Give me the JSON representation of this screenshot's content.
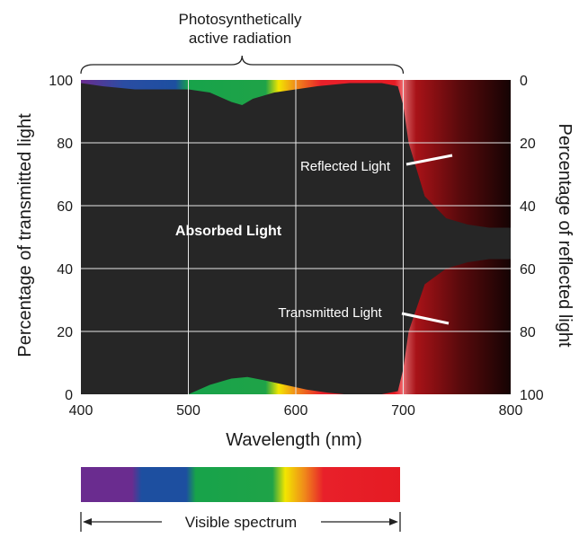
{
  "chart_data": {
    "type": "area",
    "top_label": {
      "line1": "Photosynthetically",
      "line2": "active radiation"
    },
    "xlabel": "Wavelength (nm)",
    "ylabel": "Percentage of transmitted light",
    "ylabel_right": "Percentage of reflected light",
    "xlim": [
      400,
      800
    ],
    "ylim": [
      0,
      100
    ],
    "ylim_right": [
      100,
      0
    ],
    "x_ticks": [
      "400",
      "500",
      "600",
      "700",
      "800"
    ],
    "y_ticks": [
      "0",
      "20",
      "40",
      "60",
      "80",
      "100"
    ],
    "y_ticks_right": [
      "100",
      "80",
      "60",
      "40",
      "20",
      "0"
    ],
    "grid": true,
    "par_range": [
      400,
      700
    ],
    "annotations": {
      "absorbed": "Absorbed Light",
      "reflected": "Reflected Light",
      "transmitted": "Transmitted Light"
    },
    "reflected_curve": {
      "x": [
        400,
        420,
        450,
        480,
        500,
        520,
        540,
        550,
        560,
        580,
        600,
        620,
        650,
        680,
        695,
        700,
        705,
        720,
        740,
        760,
        780,
        800
      ],
      "y": [
        1,
        2,
        3,
        3,
        3,
        4,
        7,
        8,
        6,
        4,
        3,
        2,
        1,
        1,
        2,
        8,
        20,
        37,
        44,
        46,
        47,
        47
      ]
    },
    "transmitted_curve": {
      "x": [
        400,
        450,
        500,
        520,
        540,
        555,
        570,
        590,
        610,
        630,
        645,
        680,
        695,
        700,
        705,
        720,
        740,
        760,
        780,
        800
      ],
      "y": [
        0,
        0,
        0,
        3,
        5,
        5.5,
        4.5,
        3,
        1.5,
        0.5,
        0,
        0,
        1,
        8,
        20,
        35,
        40,
        42,
        43,
        43
      ]
    }
  },
  "spectrum_bar": {
    "label": "Visible spectrum",
    "range": [
      400,
      700
    ],
    "colors": [
      "#6a2c8f",
      "#1d4fa0",
      "#17a34a",
      "#22a040",
      "#f2e600",
      "#f08a1a",
      "#e8202a",
      "#e51b23"
    ]
  }
}
